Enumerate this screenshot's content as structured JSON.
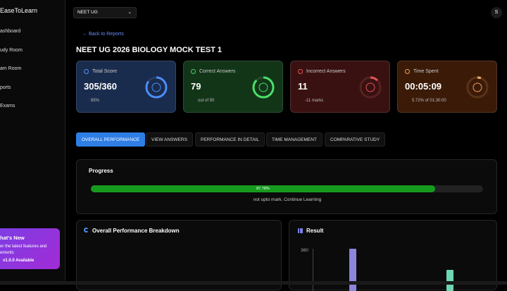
{
  "sidebar": {
    "brand": "EaseToLearn",
    "nav": [
      "ashboard",
      "udy Room",
      "am Room",
      "ports",
      "Exams"
    ],
    "promo": {
      "title": "hat's New",
      "text1": "er the latest features and",
      "text2": "ements",
      "version": "v1.0.0 Available"
    }
  },
  "header": {
    "exam_select": "NEET UG",
    "avatar": "S"
  },
  "back": "Back to Reports",
  "title": "NEET UG 2026 BIOLOGY MOCK TEST 1",
  "cards": [
    {
      "label": "Total Score",
      "value": "305/360",
      "sub": "85%"
    },
    {
      "label": "Correct Answers",
      "value": "79",
      "sub": "out of 90"
    },
    {
      "label": "Incorrect Answers",
      "value": "11",
      "sub": "-11 marks"
    },
    {
      "label": "Time Spent",
      "value": "00:05:09",
      "sub": "5.72% of 01:30:00"
    }
  ],
  "tabs": [
    "OVERALL PERFORMANCE",
    "VIEW ANSWERS",
    "PERFORMANCE IN DETAIL",
    "TIME MANAGEMENT",
    "COMPARATIVE STUDY"
  ],
  "progress": {
    "title": "Progress",
    "value": 87.78,
    "label": "87.78%",
    "message": "not upto mark. Continue Learning"
  },
  "breakdown": {
    "title": "Overall Performance Breakdown"
  },
  "result": {
    "title": "Result",
    "axis_label": "360"
  }
}
